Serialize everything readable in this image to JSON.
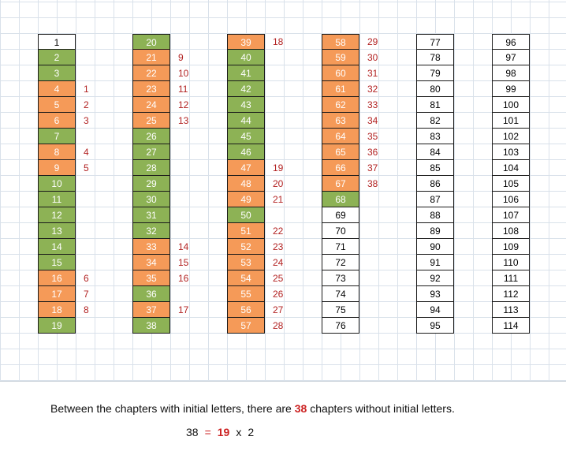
{
  "chapters": {
    "col1": [
      {
        "n": "1",
        "c": "white"
      },
      {
        "n": "2",
        "c": "green"
      },
      {
        "n": "3",
        "c": "green"
      },
      {
        "n": "4",
        "c": "orange",
        "l": "1"
      },
      {
        "n": "5",
        "c": "orange",
        "l": "2"
      },
      {
        "n": "6",
        "c": "orange",
        "l": "3"
      },
      {
        "n": "7",
        "c": "green"
      },
      {
        "n": "8",
        "c": "orange",
        "l": "4"
      },
      {
        "n": "9",
        "c": "orange",
        "l": "5"
      },
      {
        "n": "10",
        "c": "green"
      },
      {
        "n": "11",
        "c": "green"
      },
      {
        "n": "12",
        "c": "green"
      },
      {
        "n": "13",
        "c": "green"
      },
      {
        "n": "14",
        "c": "green"
      },
      {
        "n": "15",
        "c": "green"
      },
      {
        "n": "16",
        "c": "orange",
        "l": "6"
      },
      {
        "n": "17",
        "c": "orange",
        "l": "7"
      },
      {
        "n": "18",
        "c": "orange",
        "l": "8"
      },
      {
        "n": "19",
        "c": "green"
      }
    ],
    "col2": [
      {
        "n": "20",
        "c": "green"
      },
      {
        "n": "21",
        "c": "orange",
        "l": "9"
      },
      {
        "n": "22",
        "c": "orange",
        "l": "10"
      },
      {
        "n": "23",
        "c": "orange",
        "l": "11"
      },
      {
        "n": "24",
        "c": "orange",
        "l": "12"
      },
      {
        "n": "25",
        "c": "orange",
        "l": "13"
      },
      {
        "n": "26",
        "c": "green"
      },
      {
        "n": "27",
        "c": "green"
      },
      {
        "n": "28",
        "c": "green"
      },
      {
        "n": "29",
        "c": "green"
      },
      {
        "n": "30",
        "c": "green"
      },
      {
        "n": "31",
        "c": "green"
      },
      {
        "n": "32",
        "c": "green"
      },
      {
        "n": "33",
        "c": "orange",
        "l": "14"
      },
      {
        "n": "34",
        "c": "orange",
        "l": "15"
      },
      {
        "n": "35",
        "c": "orange",
        "l": "16"
      },
      {
        "n": "36",
        "c": "green"
      },
      {
        "n": "37",
        "c": "orange",
        "l": "17"
      },
      {
        "n": "38",
        "c": "green"
      }
    ],
    "col3": [
      {
        "n": "39",
        "c": "orange",
        "l": "18"
      },
      {
        "n": "40",
        "c": "green"
      },
      {
        "n": "41",
        "c": "green"
      },
      {
        "n": "42",
        "c": "green"
      },
      {
        "n": "43",
        "c": "green"
      },
      {
        "n": "44",
        "c": "green"
      },
      {
        "n": "45",
        "c": "green"
      },
      {
        "n": "46",
        "c": "green"
      },
      {
        "n": "47",
        "c": "orange",
        "l": "19"
      },
      {
        "n": "48",
        "c": "orange",
        "l": "20"
      },
      {
        "n": "49",
        "c": "orange",
        "l": "21"
      },
      {
        "n": "50",
        "c": "green"
      },
      {
        "n": "51",
        "c": "orange",
        "l": "22"
      },
      {
        "n": "52",
        "c": "orange",
        "l": "23"
      },
      {
        "n": "53",
        "c": "orange",
        "l": "24"
      },
      {
        "n": "54",
        "c": "orange",
        "l": "25"
      },
      {
        "n": "55",
        "c": "orange",
        "l": "26"
      },
      {
        "n": "56",
        "c": "orange",
        "l": "27"
      },
      {
        "n": "57",
        "c": "orange",
        "l": "28"
      }
    ],
    "col4": [
      {
        "n": "58",
        "c": "orange",
        "l": "29"
      },
      {
        "n": "59",
        "c": "orange",
        "l": "30"
      },
      {
        "n": "60",
        "c": "orange",
        "l": "31"
      },
      {
        "n": "61",
        "c": "orange",
        "l": "32"
      },
      {
        "n": "62",
        "c": "orange",
        "l": "33"
      },
      {
        "n": "63",
        "c": "orange",
        "l": "34"
      },
      {
        "n": "64",
        "c": "orange",
        "l": "35"
      },
      {
        "n": "65",
        "c": "orange",
        "l": "36"
      },
      {
        "n": "66",
        "c": "orange",
        "l": "37"
      },
      {
        "n": "67",
        "c": "orange",
        "l": "38"
      },
      {
        "n": "68",
        "c": "green"
      },
      {
        "n": "69",
        "c": "white"
      },
      {
        "n": "70",
        "c": "white"
      },
      {
        "n": "71",
        "c": "white"
      },
      {
        "n": "72",
        "c": "white"
      },
      {
        "n": "73",
        "c": "white"
      },
      {
        "n": "74",
        "c": "white"
      },
      {
        "n": "75",
        "c": "white"
      },
      {
        "n": "76",
        "c": "white"
      }
    ],
    "col5": [
      {
        "n": "77",
        "c": "white"
      },
      {
        "n": "78",
        "c": "white"
      },
      {
        "n": "79",
        "c": "white"
      },
      {
        "n": "80",
        "c": "white"
      },
      {
        "n": "81",
        "c": "white"
      },
      {
        "n": "82",
        "c": "white"
      },
      {
        "n": "83",
        "c": "white"
      },
      {
        "n": "84",
        "c": "white"
      },
      {
        "n": "85",
        "c": "white"
      },
      {
        "n": "86",
        "c": "white"
      },
      {
        "n": "87",
        "c": "white"
      },
      {
        "n": "88",
        "c": "white"
      },
      {
        "n": "89",
        "c": "white"
      },
      {
        "n": "90",
        "c": "white"
      },
      {
        "n": "91",
        "c": "white"
      },
      {
        "n": "92",
        "c": "white"
      },
      {
        "n": "93",
        "c": "white"
      },
      {
        "n": "94",
        "c": "white"
      },
      {
        "n": "95",
        "c": "white"
      }
    ],
    "col6": [
      {
        "n": "96",
        "c": "white"
      },
      {
        "n": "97",
        "c": "white"
      },
      {
        "n": "98",
        "c": "white"
      },
      {
        "n": "99",
        "c": "white"
      },
      {
        "n": "100",
        "c": "white"
      },
      {
        "n": "101",
        "c": "white"
      },
      {
        "n": "102",
        "c": "white"
      },
      {
        "n": "103",
        "c": "white"
      },
      {
        "n": "104",
        "c": "white"
      },
      {
        "n": "105",
        "c": "white"
      },
      {
        "n": "106",
        "c": "white"
      },
      {
        "n": "107",
        "c": "white"
      },
      {
        "n": "108",
        "c": "white"
      },
      {
        "n": "109",
        "c": "white"
      },
      {
        "n": "110",
        "c": "white"
      },
      {
        "n": "111",
        "c": "white"
      },
      {
        "n": "112",
        "c": "white"
      },
      {
        "n": "113",
        "c": "white"
      },
      {
        "n": "114",
        "c": "white"
      }
    ]
  },
  "colors": {
    "green": "#8db255",
    "orange": "#f59a58",
    "label_red": "#b22222",
    "emphasis_red": "#cc2222"
  },
  "summary": {
    "text_before": "Between the chapters with initial letters, there are",
    "count": "38",
    "text_after": "chapters without initial letters."
  },
  "equation": {
    "lhs": "38",
    "equals": "=",
    "factor_a": "19",
    "times": "x",
    "factor_b": "2"
  }
}
